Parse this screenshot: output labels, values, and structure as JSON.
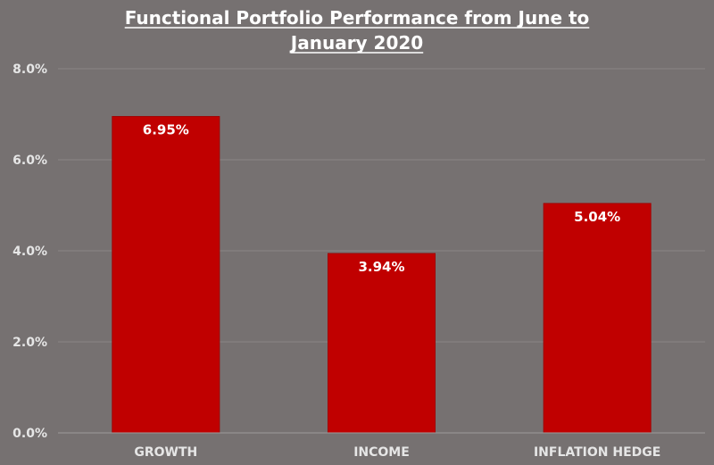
{
  "chart_data": {
    "type": "bar",
    "title_lines": [
      "Functional Portfolio Performance from June to",
      "January 2020"
    ],
    "categories": [
      "GROWTH",
      "INCOME",
      "INFLATION HEDGE"
    ],
    "values": [
      6.95,
      3.94,
      5.04
    ],
    "value_labels": [
      "6.95%",
      "3.94%",
      "5.04%"
    ],
    "y_ticks": [
      0,
      2,
      4,
      6,
      8
    ],
    "y_tick_labels": [
      "0.0%",
      "2.0%",
      "4.0%",
      "6.0%",
      "8.0%"
    ],
    "ylim": [
      0,
      8
    ],
    "xlabel": "",
    "ylabel": "",
    "grid": true,
    "legend": "none"
  },
  "colors": {
    "background": "#767171",
    "bar": "#c00000",
    "gridline": "#8a8585",
    "axis_line": "#9e9a9a",
    "title": "#ffffff",
    "tick_label": "#e6e6e6",
    "value_label": "#ffffff"
  }
}
